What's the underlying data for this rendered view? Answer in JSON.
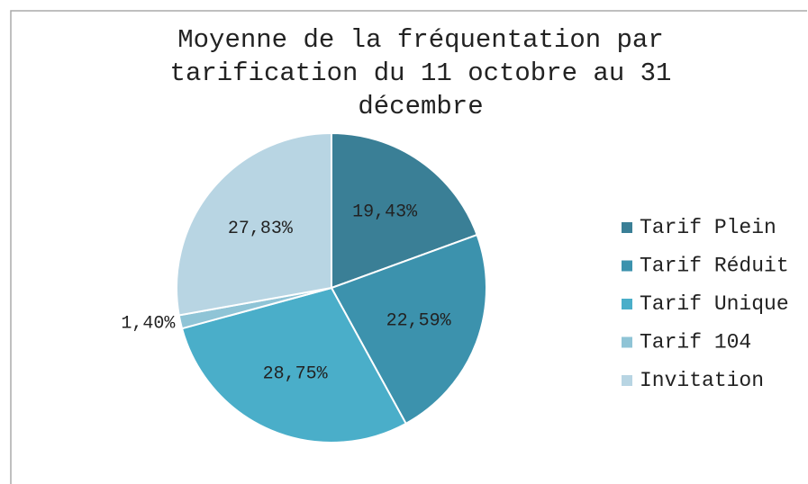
{
  "chart_data": {
    "type": "pie",
    "title": "Moyenne de la fréquentation par tarification du 11 octobre au 31 décembre",
    "categories": [
      "Tarif Plein",
      "Tarif Réduit",
      "Tarif Unique",
      "Tarif 104",
      "Invitation"
    ],
    "values": [
      19.43,
      22.59,
      28.75,
      1.4,
      27.83
    ],
    "value_labels": [
      "19,43%",
      "22,59%",
      "28,75%",
      "1,40%",
      "27,83%"
    ],
    "colors": [
      "#3a7f96",
      "#3c92ad",
      "#4aaec9",
      "#8fc4d6",
      "#b8d5e3"
    ],
    "legend": "right"
  }
}
